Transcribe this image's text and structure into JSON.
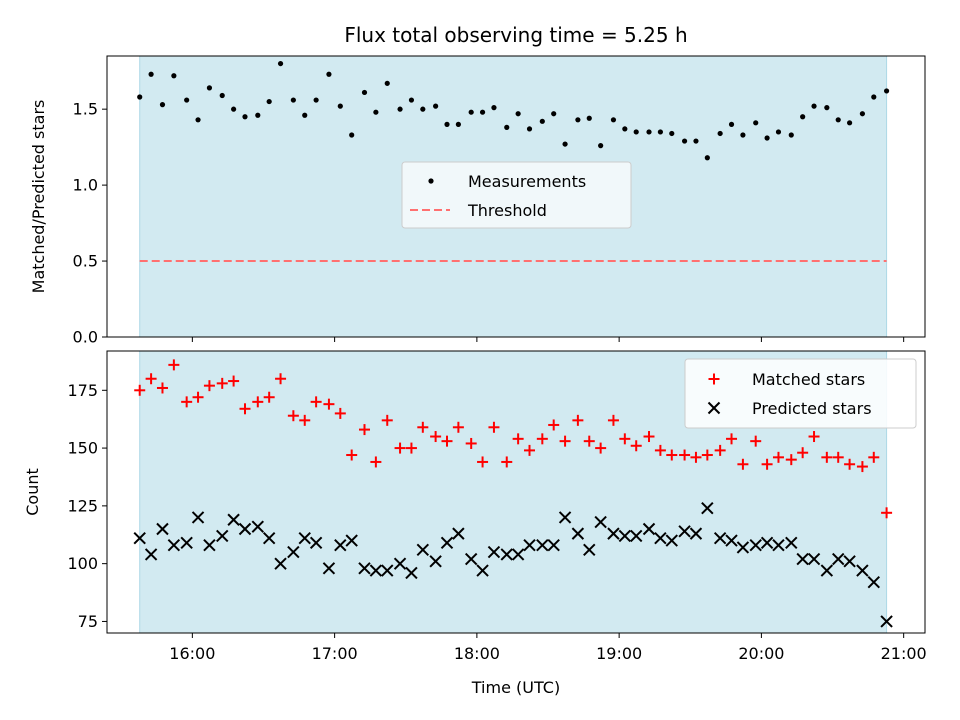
{
  "chart_data": {
    "title": "Flux total observing time = 5.25 h",
    "xlabel": "Time (UTC)",
    "x_ticks": [
      "16:00",
      "17:00",
      "18:00",
      "19:00",
      "20:00",
      "21:00"
    ],
    "x_tick_hours": [
      16,
      17,
      18,
      19,
      20,
      21
    ],
    "xlim": [
      15.4,
      21.15
    ],
    "shaded_span": [
      15.63,
      20.88
    ],
    "colors": {
      "shade": "#add8e6",
      "measurements": "#000000",
      "threshold": "#ff7070",
      "matched": "#ff0000",
      "predicted": "#000000"
    },
    "charts": [
      {
        "type": "scatter",
        "ylabel": "Matched/Predicted stars",
        "ylim": [
          0,
          1.85
        ],
        "y_ticks": [
          0.0,
          0.5,
          1.0,
          1.5
        ],
        "y_tick_labels": [
          "0.0",
          "0.5",
          "1.0",
          "1.5"
        ],
        "legend_position": "center",
        "threshold": 0.5,
        "legend": [
          {
            "label": "Measurements"
          },
          {
            "label": "Threshold"
          }
        ],
        "x": [
          15.63,
          15.71,
          15.79,
          15.87,
          15.96,
          16.04,
          16.12,
          16.21,
          16.29,
          16.37,
          16.46,
          16.54,
          16.62,
          16.71,
          16.79,
          16.87,
          16.96,
          17.04,
          17.12,
          17.21,
          17.29,
          17.37,
          17.46,
          17.54,
          17.62,
          17.71,
          17.79,
          17.87,
          17.96,
          18.04,
          18.12,
          18.21,
          18.29,
          18.37,
          18.46,
          18.54,
          18.62,
          18.71,
          18.79,
          18.87,
          18.96,
          19.04,
          19.12,
          19.21,
          19.29,
          19.37,
          19.46,
          19.54,
          19.62,
          19.71,
          19.79,
          19.87,
          19.96,
          20.04,
          20.12,
          20.21,
          20.29,
          20.37,
          20.46,
          20.54,
          20.62,
          20.71,
          20.79,
          20.88
        ],
        "values": [
          1.58,
          1.73,
          1.53,
          1.72,
          1.56,
          1.43,
          1.64,
          1.59,
          1.5,
          1.45,
          1.46,
          1.55,
          1.8,
          1.56,
          1.46,
          1.56,
          1.73,
          1.52,
          1.33,
          1.61,
          1.48,
          1.67,
          1.5,
          1.56,
          1.5,
          1.52,
          1.4,
          1.4,
          1.48,
          1.48,
          1.51,
          1.38,
          1.47,
          1.37,
          1.42,
          1.47,
          1.27,
          1.43,
          1.44,
          1.26,
          1.43,
          1.37,
          1.35,
          1.35,
          1.35,
          1.34,
          1.29,
          1.29,
          1.18,
          1.34,
          1.4,
          1.33,
          1.41,
          1.31,
          1.35,
          1.33,
          1.45,
          1.52,
          1.51,
          1.43,
          1.41,
          1.47,
          1.58,
          1.62
        ]
      },
      {
        "type": "scatter",
        "ylabel": "Count",
        "ylim": [
          70,
          192
        ],
        "y_ticks": [
          75,
          100,
          125,
          150,
          175
        ],
        "y_tick_labels": [
          "75",
          "100",
          "125",
          "150",
          "175"
        ],
        "legend_position": "top-right",
        "legend": [
          {
            "label": "Matched stars"
          },
          {
            "label": "Predicted stars"
          }
        ],
        "x": [
          15.63,
          15.71,
          15.79,
          15.87,
          15.96,
          16.04,
          16.12,
          16.21,
          16.29,
          16.37,
          16.46,
          16.54,
          16.62,
          16.71,
          16.79,
          16.87,
          16.96,
          17.04,
          17.12,
          17.21,
          17.29,
          17.37,
          17.46,
          17.54,
          17.62,
          17.71,
          17.79,
          17.87,
          17.96,
          18.04,
          18.12,
          18.21,
          18.29,
          18.37,
          18.46,
          18.54,
          18.62,
          18.71,
          18.79,
          18.87,
          18.96,
          19.04,
          19.12,
          19.21,
          19.29,
          19.37,
          19.46,
          19.54,
          19.62,
          19.71,
          19.79,
          19.87,
          19.96,
          20.04,
          20.12,
          20.21,
          20.29,
          20.37,
          20.46,
          20.54,
          20.62,
          20.71,
          20.79,
          20.88
        ],
        "series": [
          {
            "name": "Matched stars",
            "values": [
              175,
              180,
              176,
              186,
              170,
              172,
              177,
              178,
              179,
              167,
              170,
              172,
              180,
              164,
              162,
              170,
              169,
              165,
              147,
              158,
              144,
              162,
              150,
              150,
              159,
              155,
              153,
              159,
              152,
              144,
              159,
              144,
              154,
              149,
              154,
              160,
              153,
              162,
              153,
              150,
              162,
              154,
              151,
              155,
              149,
              147,
              147,
              146,
              147,
              149,
              154,
              143,
              153,
              143,
              146,
              145,
              148,
              155,
              146,
              146,
              143,
              142,
              146,
              122
            ]
          },
          {
            "name": "Predicted stars",
            "values": [
              111,
              104,
              115,
              108,
              109,
              120,
              108,
              112,
              119,
              115,
              116,
              111,
              100,
              105,
              111,
              109,
              98,
              108,
              110,
              98,
              97,
              97,
              100,
              96,
              106,
              101,
              109,
              113,
              102,
              97,
              105,
              104,
              104,
              108,
              108,
              108,
              120,
              113,
              106,
              118,
              113,
              112,
              112,
              115,
              111,
              110,
              114,
              113,
              124,
              111,
              110,
              107,
              108,
              109,
              108,
              109,
              102,
              102,
              97,
              102,
              101,
              97,
              92,
              75
            ]
          }
        ]
      }
    ]
  }
}
